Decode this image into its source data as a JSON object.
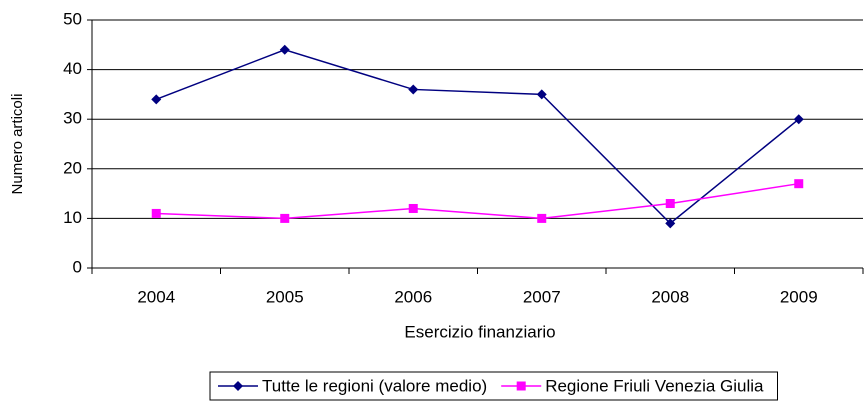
{
  "chart_data": {
    "type": "line",
    "x_label": "Esercizio finanziario",
    "y_label": "Numero articoli",
    "categories": [
      "2004",
      "2005",
      "2006",
      "2007",
      "2008",
      "2009"
    ],
    "series": [
      {
        "name": "Tutte le regioni (valore medio)",
        "color": "#000080",
        "marker": "diamond",
        "values": [
          34,
          44,
          36,
          35,
          9,
          30
        ]
      },
      {
        "name": "Regione Friuli Venezia Giulia",
        "color": "#ff00ff",
        "marker": "square",
        "values": [
          11,
          10,
          12,
          10,
          13,
          17
        ]
      }
    ],
    "ylim": [
      0,
      50
    ],
    "yticks": [
      0,
      10,
      20,
      30,
      40,
      50
    ],
    "grid": true,
    "legend": "bottom"
  }
}
